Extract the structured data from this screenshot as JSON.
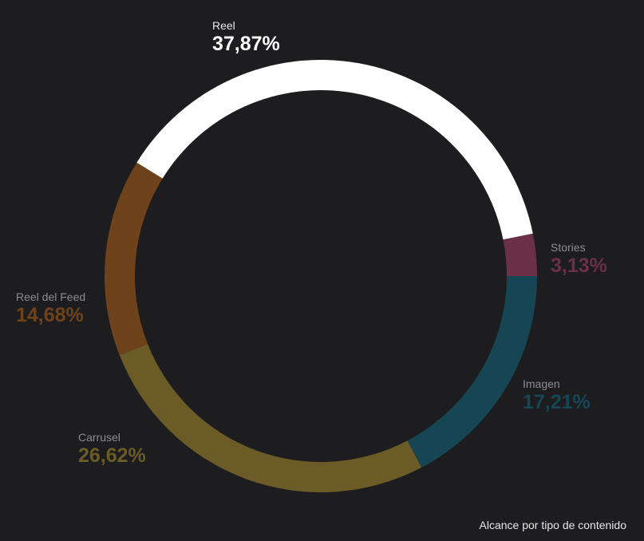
{
  "chart_data": {
    "type": "pie",
    "variant": "donut",
    "caption": "Alcance  por tipo de contenido",
    "start": "3 o'clock, clockwise",
    "slices": [
      {
        "label": "Imagen",
        "value": 17.21,
        "display": "17,21%",
        "color": "#164654"
      },
      {
        "label": "Carrusel",
        "value": 26.62,
        "display": "26,62%",
        "color": "#6b5b27"
      },
      {
        "label": "Reel del Feed",
        "value": 14.68,
        "display": "14,68%",
        "color": "#6e431b"
      },
      {
        "label": "Reel",
        "value": 37.87,
        "display": "37,87%",
        "color": "#ffffff"
      },
      {
        "label": "Stories",
        "value": 3.13,
        "display": "3,13%",
        "color": "#6b3045"
      }
    ]
  }
}
